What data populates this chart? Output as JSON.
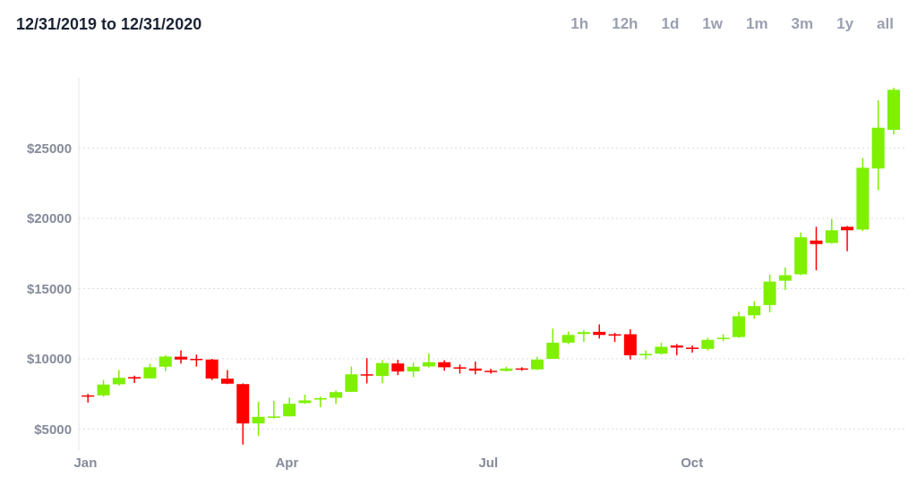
{
  "chart_data": {
    "type": "candlestick",
    "title": "12/31/2019 to 12/31/2020",
    "annotations": [
      "1h",
      "12h",
      "1d",
      "1w",
      "1m",
      "3m",
      "1y",
      "all"
    ],
    "x": [
      "2020-01-02",
      "2020-01-09",
      "2020-01-16",
      "2020-01-23",
      "2020-01-30",
      "2020-02-06",
      "2020-02-13",
      "2020-02-20",
      "2020-02-27",
      "2020-03-05",
      "2020-03-12",
      "2020-03-19",
      "2020-03-26",
      "2020-04-02",
      "2020-04-09",
      "2020-04-16",
      "2020-04-23",
      "2020-04-30",
      "2020-05-07",
      "2020-05-14",
      "2020-05-21",
      "2020-05-28",
      "2020-06-04",
      "2020-06-11",
      "2020-06-18",
      "2020-06-25",
      "2020-07-02",
      "2020-07-09",
      "2020-07-16",
      "2020-07-23",
      "2020-07-30",
      "2020-08-06",
      "2020-08-13",
      "2020-08-20",
      "2020-08-27",
      "2020-09-03",
      "2020-09-10",
      "2020-09-17",
      "2020-09-24",
      "2020-10-01",
      "2020-10-08",
      "2020-10-15",
      "2020-10-22",
      "2020-10-29",
      "2020-11-05",
      "2020-11-12",
      "2020-11-19",
      "2020-11-26",
      "2020-12-03",
      "2020-12-10",
      "2020-12-17",
      "2020-12-24",
      "2020-12-31"
    ],
    "ohlc": [
      [
        7400,
        7500,
        6900,
        7350
      ],
      [
        7400,
        8500,
        7300,
        8170
      ],
      [
        8190,
        9200,
        8080,
        8650
      ],
      [
        8700,
        8800,
        8270,
        8600
      ],
      [
        8610,
        9650,
        8600,
        9400
      ],
      [
        9440,
        10250,
        9120,
        10160
      ],
      [
        10150,
        10600,
        9670,
        9950
      ],
      [
        10000,
        10300,
        9450,
        9950
      ],
      [
        9950,
        10000,
        8490,
        8600
      ],
      [
        8590,
        9200,
        8200,
        8230
      ],
      [
        8200,
        8250,
        3900,
        5400
      ],
      [
        5400,
        6950,
        4500,
        5870
      ],
      [
        5850,
        7000,
        5750,
        5900
      ],
      [
        5910,
        7250,
        5900,
        6800
      ],
      [
        6850,
        7450,
        6800,
        7040
      ],
      [
        7100,
        7300,
        6550,
        7200
      ],
      [
        7230,
        7750,
        6800,
        7630
      ],
      [
        7650,
        9450,
        7650,
        8900
      ],
      [
        8900,
        10050,
        8250,
        8850
      ],
      [
        8780,
        9900,
        8270,
        9700
      ],
      [
        9670,
        9930,
        8840,
        9100
      ],
      [
        9100,
        9750,
        8700,
        9440
      ],
      [
        9460,
        10400,
        9380,
        9760
      ],
      [
        9760,
        9900,
        9150,
        9400
      ],
      [
        9400,
        9600,
        8950,
        9300
      ],
      [
        9310,
        9800,
        8900,
        9160
      ],
      [
        9150,
        9300,
        8950,
        9100
      ],
      [
        9140,
        9450,
        9100,
        9310
      ],
      [
        9320,
        9400,
        9150,
        9280
      ],
      [
        9250,
        10150,
        9200,
        9950
      ],
      [
        10000,
        12150,
        10000,
        11150
      ],
      [
        11150,
        11950,
        11050,
        11700
      ],
      [
        11770,
        12050,
        11200,
        11900
      ],
      [
        11920,
        12450,
        11450,
        11700
      ],
      [
        11750,
        11850,
        11200,
        11680
      ],
      [
        11750,
        12100,
        9950,
        10250
      ],
      [
        10250,
        10600,
        9950,
        10350
      ],
      [
        10370,
        11150,
        10300,
        10860
      ],
      [
        10950,
        11050,
        10250,
        10800
      ],
      [
        10800,
        10950,
        10450,
        10700
      ],
      [
        10710,
        11500,
        10600,
        11350
      ],
      [
        11420,
        11750,
        11250,
        11500
      ],
      [
        11550,
        13350,
        11500,
        13030
      ],
      [
        13100,
        14100,
        12850,
        13750
      ],
      [
        13830,
        16000,
        13300,
        15500
      ],
      [
        15560,
        16500,
        14900,
        15950
      ],
      [
        16020,
        19000,
        15950,
        18650
      ],
      [
        18420,
        19400,
        16300,
        18170
      ],
      [
        18250,
        19950,
        18200,
        19150
      ],
      [
        19400,
        19450,
        17650,
        19150
      ],
      [
        19200,
        24300,
        19100,
        23600
      ],
      [
        23550,
        28400,
        22000,
        26450
      ],
      [
        26300,
        29300,
        25950,
        29150
      ]
    ],
    "colors": [
      "#ff0000",
      "#7ff000",
      "#7ff000",
      "#ff0000",
      "#7ff000",
      "#7ff000",
      "#ff0000",
      "#ff0000",
      "#ff0000",
      "#ff0000",
      "#ff0000",
      "#7ff000",
      "#7ff000",
      "#7ff000",
      "#7ff000",
      "#7ff000",
      "#7ff000",
      "#7ff000",
      "#ff0000",
      "#7ff000",
      "#ff0000",
      "#7ff000",
      "#7ff000",
      "#ff0000",
      "#ff0000",
      "#ff0000",
      "#ff0000",
      "#7ff000",
      "#ff0000",
      "#7ff000",
      "#7ff000",
      "#7ff000",
      "#7ff000",
      "#ff0000",
      "#ff0000",
      "#ff0000",
      "#7ff000",
      "#7ff000",
      "#ff0000",
      "#ff0000",
      "#7ff000",
      "#7ff000",
      "#7ff000",
      "#7ff000",
      "#7ff000",
      "#7ff000",
      "#7ff000",
      "#ff0000",
      "#7ff000",
      "#ff0000",
      "#7ff000",
      "#7ff000",
      "#7ff000"
    ],
    "xlim": [
      "2019-12-29",
      "2021-01-05"
    ],
    "xticks": [
      {
        "value": "2020-01-01",
        "label": "Jan"
      },
      {
        "value": "2020-04-01",
        "label": "Apr"
      },
      {
        "value": "2020-07-01",
        "label": "Jul"
      },
      {
        "value": "2020-10-01",
        "label": "Oct"
      }
    ],
    "yticks": [
      {
        "value": 5000,
        "label": "$5000"
      },
      {
        "value": 10000,
        "label": "$10000"
      },
      {
        "value": 15000,
        "label": "$15000"
      },
      {
        "value": 20000,
        "label": "$20000"
      },
      {
        "value": 25000,
        "label": "$25000"
      }
    ],
    "ylim": [
      3500,
      30000
    ],
    "grid": "y"
  }
}
